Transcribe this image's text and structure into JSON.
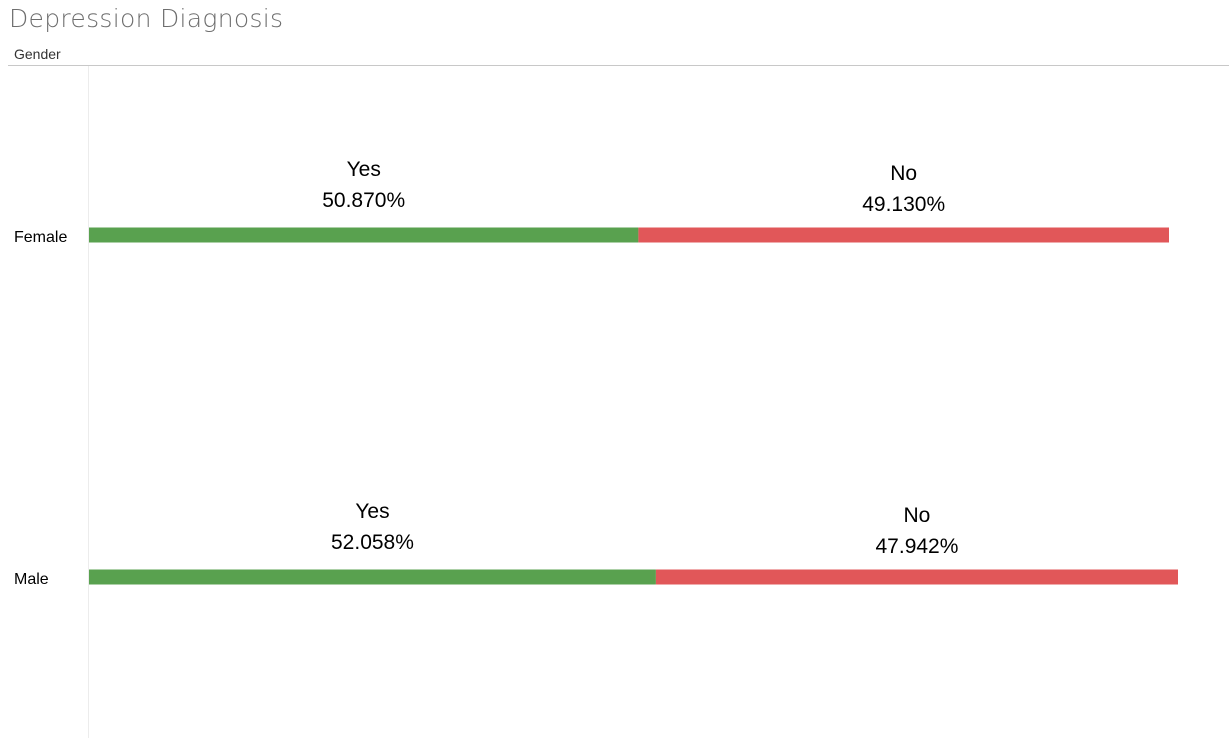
{
  "title": "Depression Diagnosis",
  "column_header": "Gender",
  "colors": {
    "yes": "#59a14f",
    "no": "#e15759"
  },
  "chart_data": {
    "type": "bar",
    "orientation": "horizontal",
    "stacked": true,
    "title": "Depression Diagnosis",
    "categories": [
      "Female",
      "Male"
    ],
    "series": [
      {
        "name": "Yes",
        "values": [
          50.87,
          52.058
        ],
        "labels": [
          "50.870%",
          "52.058%"
        ],
        "color": "#59a14f"
      },
      {
        "name": "No",
        "values": [
          49.13,
          47.942
        ],
        "labels": [
          "49.130%",
          "47.942%"
        ],
        "color": "#e15759"
      }
    ],
    "xlim": [
      0,
      100
    ],
    "grid": false
  }
}
